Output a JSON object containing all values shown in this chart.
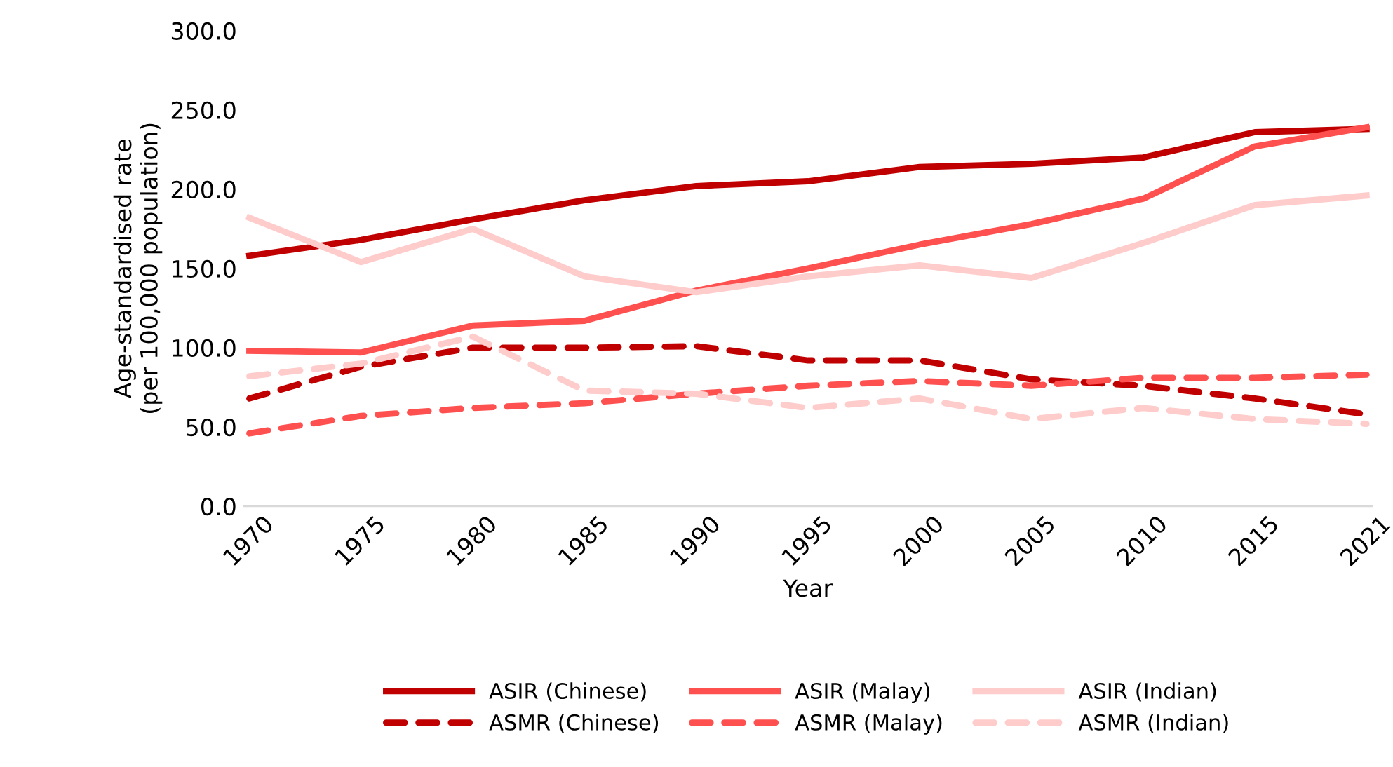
{
  "chart_data": {
    "type": "line",
    "xlabel": "Year",
    "ylabel": "Age-standardised rate\n(per 100,000 population)",
    "categories": [
      "1970",
      "1975",
      "1980",
      "1985",
      "1990",
      "1995",
      "2000",
      "2005",
      "2010",
      "2015",
      "2021"
    ],
    "series": [
      {
        "name": "ASIR (Chinese)",
        "color": "#c00000",
        "line_style": "solid",
        "values": [
          158,
          168,
          181,
          193,
          202,
          205,
          214,
          216,
          220,
          236,
          238
        ]
      },
      {
        "name": "ASIR (Malay)",
        "color": "#ff5050",
        "line_style": "solid",
        "values": [
          98,
          97,
          114,
          117,
          136,
          150,
          165,
          178,
          194,
          227,
          239
        ]
      },
      {
        "name": "ASIR (Indian)",
        "color": "#ffcccc",
        "line_style": "solid",
        "values": [
          182,
          154,
          175,
          145,
          135,
          145,
          152,
          144,
          166,
          190,
          196
        ]
      },
      {
        "name": "ASMR (Chinese)",
        "color": "#c00000",
        "line_style": "dashed",
        "values": [
          68,
          88,
          100,
          100,
          101,
          92,
          92,
          80,
          76,
          68,
          58
        ]
      },
      {
        "name": "ASMR (Malay)",
        "color": "#ff5050",
        "line_style": "dashed",
        "values": [
          46,
          57,
          62,
          65,
          71,
          76,
          79,
          76,
          81,
          81,
          83
        ]
      },
      {
        "name": "ASMR (Indian)",
        "color": "#ffcccc",
        "line_style": "dashed",
        "values": [
          82,
          90,
          107,
          73,
          71,
          62,
          68,
          55,
          62,
          55,
          52
        ]
      }
    ],
    "ylim": [
      0,
      300
    ],
    "yticks": [
      {
        "value": 0,
        "label": "0.0"
      },
      {
        "value": 50,
        "label": "50.0"
      },
      {
        "value": 100,
        "label": "100.0"
      },
      {
        "value": 150,
        "label": "150.0"
      },
      {
        "value": 200,
        "label": "200.0"
      },
      {
        "value": 250,
        "label": "250.0"
      },
      {
        "value": 300,
        "label": "300.0"
      }
    ],
    "grid": false,
    "legend": "bottom",
    "marker": "none"
  }
}
